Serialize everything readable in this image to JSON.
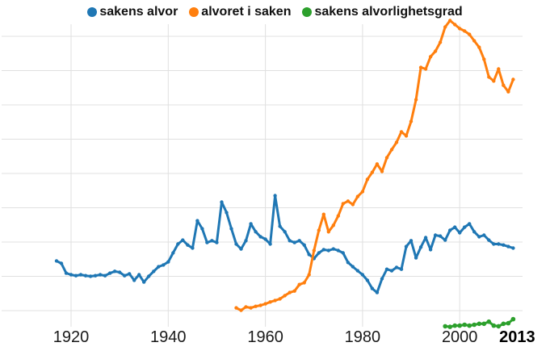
{
  "legend": {
    "items": [
      {
        "label": "sakens alvor",
        "color": "#1f77b4"
      },
      {
        "label": "alvoret i saken",
        "color": "#ff7f0e"
      },
      {
        "label": "sakens alvorlighetsgrad",
        "color": "#2ca02c"
      }
    ]
  },
  "x_axis": {
    "ticks": [
      {
        "label": "1920",
        "year": 1920,
        "bold": false
      },
      {
        "label": "1940",
        "year": 1940,
        "bold": false
      },
      {
        "label": "1960",
        "year": 1960,
        "bold": false
      },
      {
        "label": "1980",
        "year": 1980,
        "bold": false
      },
      {
        "label": "2000",
        "year": 2000,
        "bold": false
      },
      {
        "label": "2013",
        "year": 2013,
        "bold": true
      }
    ]
  },
  "chart_data": {
    "type": "line",
    "title": "",
    "xlabel": "",
    "ylabel": "",
    "xlim": [
      1905,
      2013
    ],
    "ylim": [
      0,
      105
    ],
    "x_ticks": [
      1920,
      1940,
      1960,
      1980,
      2000,
      2013
    ],
    "grid": true,
    "legend_position": "top",
    "grid_color": "#e0e0e0",
    "series": [
      {
        "name": "sakens alvor",
        "color": "#1f77b4",
        "start_year": 1917,
        "marker_radius": 2.2,
        "values": [
          21.6,
          20.8,
          17.6,
          17.1,
          16.8,
          17.1,
          16.8,
          16.6,
          16.8,
          17.1,
          16.8,
          17.6,
          18.2,
          17.9,
          16.8,
          17.4,
          15.3,
          17.1,
          14.7,
          16.6,
          18.2,
          19.7,
          20.3,
          21.3,
          24.2,
          27.1,
          28.4,
          26.8,
          25.8,
          34.7,
          32.1,
          27.6,
          28.2,
          27.6,
          40.8,
          37.4,
          32.1,
          27.1,
          25.5,
          28.2,
          33.7,
          31.1,
          29.5,
          28.7,
          27.1,
          42.9,
          32.9,
          31.1,
          28.2,
          27.6,
          28.2,
          26.8,
          23.7,
          22.4,
          24.2,
          25.3,
          25.0,
          25.5,
          25.0,
          24.2,
          21.1,
          19.7,
          18.4,
          17.1,
          15.3,
          12.6,
          11.3,
          15.8,
          18.9,
          18.4,
          19.5,
          18.9,
          26.3,
          28.2,
          22.6,
          26.1,
          29.2,
          25.3,
          30.0,
          29.7,
          28.4,
          31.6,
          32.6,
          30.8,
          32.6,
          33.7,
          31.1,
          29.5,
          30.0,
          28.4,
          27.1,
          27.1,
          26.8,
          26.3,
          25.8
        ]
      },
      {
        "name": "alvoret i saken",
        "color": "#ff7f0e",
        "start_year": 1954,
        "marker_radius": 2.2,
        "values": [
          6.3,
          5.5,
          6.6,
          6.3,
          6.8,
          7.1,
          7.6,
          8.2,
          8.7,
          9.2,
          10.3,
          11.3,
          11.8,
          13.9,
          14.5,
          17.1,
          25.0,
          31.6,
          36.8,
          31.1,
          33.2,
          36.3,
          40.3,
          41.1,
          40.0,
          42.6,
          44.2,
          48.2,
          50.5,
          53.2,
          50.8,
          55.3,
          57.9,
          60.3,
          63.7,
          62.4,
          67.1,
          74.2,
          84.7,
          84.2,
          88.2,
          90.0,
          92.9,
          97.9,
          100.0,
          98.7,
          97.4,
          96.6,
          95.5,
          93.4,
          91.3,
          87.4,
          81.6,
          80.3,
          84.2,
          78.9,
          76.8,
          80.8
        ]
      },
      {
        "name": "sakens alvorlighetsgrad",
        "color": "#2ca02c",
        "start_year": 1997,
        "marker_radius": 2.8,
        "values": [
          0.3,
          0.1,
          0.5,
          0.5,
          0.8,
          0.5,
          0.8,
          1.1,
          1.1,
          1.8,
          0.5,
          0.3,
          1.1,
          1.3,
          2.6
        ]
      }
    ]
  }
}
